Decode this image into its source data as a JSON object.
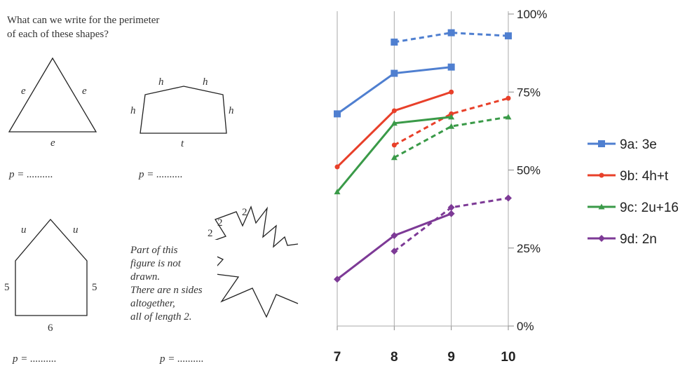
{
  "worksheet": {
    "question": [
      "What can we write for the perimeter",
      "of each of these shapes?"
    ],
    "shapes": [
      {
        "labels": [
          "e",
          "e",
          "e"
        ],
        "answer": "p = .........."
      },
      {
        "labels": [
          "h",
          "h",
          "h",
          "h",
          "t"
        ],
        "answer": "p = .........."
      },
      {
        "labels": [
          "u",
          "u",
          "5",
          "5",
          "6"
        ],
        "answer": "p = .........."
      },
      {
        "labels": [
          "2",
          "2",
          "2"
        ],
        "answer": "p = .........."
      }
    ],
    "note": [
      "Part of this",
      "figure is not",
      "drawn.",
      "There are n sides",
      "altogether,",
      "all of length 2."
    ]
  },
  "chart_data": {
    "type": "line",
    "x": [
      7,
      8,
      9,
      10
    ],
    "xlim": [
      7,
      10
    ],
    "xticks": [
      7,
      8,
      9,
      10
    ],
    "ylim": [
      0,
      100
    ],
    "yticks": [
      {
        "value": 0,
        "label": "0%"
      },
      {
        "value": 25,
        "label": "25%"
      },
      {
        "value": 50,
        "label": "50%"
      },
      {
        "value": 75,
        "label": "75%"
      },
      {
        "value": 100,
        "label": "100%"
      }
    ],
    "grid": true,
    "legend": "right",
    "series": [
      {
        "name": "9a: 3e",
        "color": "#4f7fd0",
        "marker": "square",
        "dashed": false,
        "values": [
          68,
          81,
          83,
          null
        ]
      },
      {
        "color": "#4f7fd0",
        "marker": "square",
        "dashed": true,
        "values": [
          null,
          91,
          94,
          93
        ]
      },
      {
        "name": "9b: 4h+t",
        "color": "#e8402a",
        "marker": "circle",
        "dashed": false,
        "values": [
          51,
          69,
          75,
          null
        ]
      },
      {
        "color": "#e8402a",
        "marker": "circle",
        "dashed": true,
        "values": [
          null,
          58,
          68,
          73
        ]
      },
      {
        "name": "9c: 2u+16",
        "color": "#3a9a48",
        "marker": "triangle",
        "dashed": false,
        "values": [
          43,
          65,
          67,
          null
        ]
      },
      {
        "color": "#3a9a48",
        "marker": "triangle",
        "dashed": true,
        "values": [
          null,
          54,
          64,
          67
        ]
      },
      {
        "name": "9d: 2n",
        "color": "#7d3a96",
        "marker": "diamond",
        "dashed": false,
        "values": [
          15,
          29,
          36,
          null
        ]
      },
      {
        "color": "#7d3a96",
        "marker": "diamond",
        "dashed": true,
        "values": [
          null,
          24,
          38,
          41
        ]
      }
    ]
  }
}
